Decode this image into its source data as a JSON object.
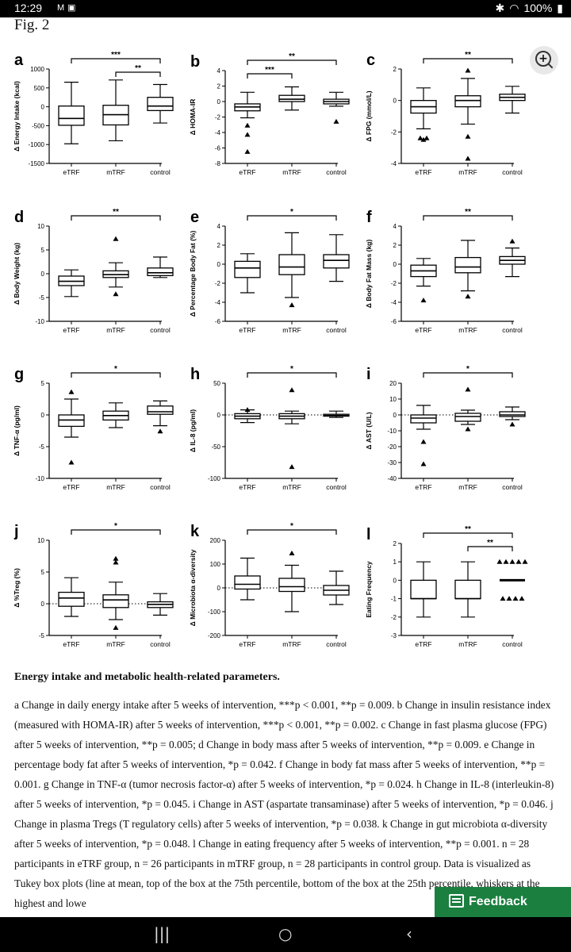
{
  "status_bar": {
    "time": "12:29",
    "notif_icons": [
      "gmail-icon",
      "news-icon"
    ],
    "sys_icons": [
      "bluetooth-icon",
      "wifi-icon"
    ],
    "battery": "100%"
  },
  "figure": {
    "title": "Fig. 2",
    "caption_title": "Energy intake and metabolic health-related parameters.",
    "caption_text": "a Change in daily energy intake after 5 weeks of intervention, ***p < 0.001, **p = 0.009. b Change in insulin resistance index (measured with HOMA-IR) after 5 weeks of intervention, ***p < 0.001, **p = 0.002. c Change in fast plasma glucose (FPG) after 5 weeks of intervention, **p = 0.005; d Change in body mass after 5 weeks of intervention, **p = 0.009. e Change in percentage body fat after 5 weeks of intervention, *p = 0.042. f Change in body fat mass after 5 weeks of intervention, **p = 0.001. g Change in TNF-α (tumor necrosis factor-α) after 5 weeks of intervention, *p = 0.024. h Change in IL-8 (interleukin-8) after 5 weeks of intervention, *p = 0.045. i Change in AST (aspartate transaminase) after 5 weeks of intervention, *p = 0.046. j Change in plasma Tregs (T regulatory cells) after 5 weeks of intervention, *p = 0.038. k Change in gut microbiota α-diversity after 5 weeks of intervention, *p = 0.048. l Change in eating frequency after 5 weeks of intervention, **p = 0.001. n = 28 participants in eTRF group, n = 26 participants in mTRF group, n = 28 participants in control group. Data is visualized as Tukey box plots (line at mean, top of the box at the 75th percentile, bottom of the box at the 25th percentile, whiskers at the highest and lowe"
  },
  "zoom_icon": "zoom-in-icon",
  "feedback": {
    "label": "Feedback",
    "icon": "feedback-icon"
  },
  "nav": {
    "recent": "|||",
    "home": "○",
    "back": "‹"
  },
  "chart_data": [
    {
      "panel": "a",
      "type": "box",
      "ylabel": "Δ Energy Intake (kcal)",
      "ylim": [
        -1500,
        1000
      ],
      "ticks": [
        1000,
        500,
        0,
        -500,
        -1000,
        -1500
      ],
      "zero_dotted": false,
      "categories": [
        "eTRF",
        "mTRF",
        "control"
      ],
      "boxes": [
        {
          "low": -980,
          "q1": -490,
          "median": -310,
          "q3": 20,
          "high": 650
        },
        {
          "low": -900,
          "q1": -480,
          "median": -210,
          "q3": 40,
          "high": 710
        },
        {
          "low": -430,
          "q1": -100,
          "median": 20,
          "q3": 250,
          "high": 590
        }
      ],
      "outliers": [
        [],
        [],
        []
      ],
      "sig": [
        {
          "from": 0,
          "to": 2,
          "label": "***"
        },
        {
          "from": 1,
          "to": 2,
          "label": "**"
        }
      ]
    },
    {
      "panel": "b",
      "type": "box",
      "ylabel": "Δ HOMA-IR",
      "ylim": [
        -8,
        4
      ],
      "ticks": [
        4,
        2,
        0,
        -2,
        -4,
        -6,
        -8
      ],
      "zero_dotted": false,
      "categories": [
        "eTRF",
        "mTRF",
        "control"
      ],
      "boxes": [
        {
          "low": -2.1,
          "q1": -1.2,
          "median": -0.7,
          "q3": -0.3,
          "high": 1.2
        },
        {
          "low": -1.1,
          "q1": 0.0,
          "median": 0.3,
          "q3": 0.8,
          "high": 1.9
        },
        {
          "low": -0.6,
          "q1": -0.3,
          "median": 0.0,
          "q3": 0.3,
          "high": 1.2
        }
      ],
      "outliers": [
        [
          -3.1,
          -4.3,
          -6.5
        ],
        [],
        [
          -2.6
        ]
      ],
      "sig": [
        {
          "from": 0,
          "to": 2,
          "label": "**"
        },
        {
          "from": 0,
          "to": 1,
          "label": "***"
        }
      ]
    },
    {
      "panel": "c",
      "type": "box",
      "ylabel": "Δ FPG (mmol/L)",
      "ylim": [
        -4,
        2
      ],
      "ticks": [
        2,
        0,
        -2,
        -4
      ],
      "zero_dotted": false,
      "categories": [
        "eTRF",
        "mTRF",
        "control"
      ],
      "boxes": [
        {
          "low": -1.8,
          "q1": -0.8,
          "median": -0.4,
          "q3": 0.0,
          "high": 0.8
        },
        {
          "low": -1.5,
          "q1": -0.4,
          "median": 0.0,
          "q3": 0.3,
          "high": 1.4
        },
        {
          "low": -0.8,
          "q1": 0.0,
          "median": 0.2,
          "q3": 0.4,
          "high": 0.9
        }
      ],
      "outliers": [
        [
          -2.5,
          -2.4,
          -2.4
        ],
        [
          1.9,
          -2.3,
          -3.7
        ],
        []
      ],
      "sig": [
        {
          "from": 0,
          "to": 2,
          "label": "**"
        }
      ]
    },
    {
      "panel": "d",
      "type": "box",
      "ylabel": "Δ Body Weight (kg)",
      "ylim": [
        -10,
        10
      ],
      "ticks": [
        10,
        5,
        0,
        -5,
        -10
      ],
      "zero_dotted": false,
      "categories": [
        "eTRF",
        "mTRF",
        "control"
      ],
      "boxes": [
        {
          "low": -4.8,
          "q1": -2.5,
          "median": -1.6,
          "q3": -0.5,
          "high": 0.8
        },
        {
          "low": -2.8,
          "q1": -0.8,
          "median": -0.2,
          "q3": 0.6,
          "high": 2.3
        },
        {
          "low": -0.8,
          "q1": -0.4,
          "median": 0.2,
          "q3": 1.2,
          "high": 3.5
        }
      ],
      "outliers": [
        [],
        [
          7.3,
          -4.3
        ],
        []
      ],
      "sig": [
        {
          "from": 0,
          "to": 2,
          "label": "**"
        }
      ]
    },
    {
      "panel": "e",
      "type": "box",
      "ylabel": "Δ Percentage Body Fat (%)",
      "ylim": [
        -6,
        4
      ],
      "ticks": [
        4,
        2,
        0,
        -2,
        -4,
        -6
      ],
      "zero_dotted": false,
      "categories": [
        "eTRF",
        "mTRF",
        "control"
      ],
      "boxes": [
        {
          "low": -3.0,
          "q1": -1.4,
          "median": -0.4,
          "q3": 0.3,
          "high": 1.1
        },
        {
          "low": -3.5,
          "q1": -1.1,
          "median": -0.3,
          "q3": 1.0,
          "high": 3.3
        },
        {
          "low": -1.8,
          "q1": -0.4,
          "median": 0.4,
          "q3": 1.0,
          "high": 3.1
        }
      ],
      "outliers": [
        [],
        [
          -4.3
        ],
        []
      ],
      "sig": [
        {
          "from": 0,
          "to": 2,
          "label": "*"
        }
      ]
    },
    {
      "panel": "f",
      "type": "box",
      "ylabel": "Δ Body Fat Mass (kg)",
      "ylim": [
        -6,
        4
      ],
      "ticks": [
        4,
        2,
        0,
        -2,
        -4,
        -6
      ],
      "zero_dotted": false,
      "categories": [
        "eTRF",
        "mTRF",
        "control"
      ],
      "boxes": [
        {
          "low": -2.3,
          "q1": -1.3,
          "median": -0.7,
          "q3": -0.1,
          "high": 0.6
        },
        {
          "low": -2.8,
          "q1": -0.9,
          "median": -0.3,
          "q3": 0.7,
          "high": 2.5
        },
        {
          "low": -1.3,
          "q1": 0.0,
          "median": 0.4,
          "q3": 0.8,
          "high": 1.7
        }
      ],
      "outliers": [
        [
          -3.8
        ],
        [
          -3.4
        ],
        [
          2.4
        ]
      ],
      "sig": [
        {
          "from": 0,
          "to": 2,
          "label": "**"
        }
      ]
    },
    {
      "panel": "g",
      "type": "box",
      "ylabel": "Δ TNF-α (pg/ml)",
      "ylim": [
        -10,
        5
      ],
      "ticks": [
        5,
        0,
        -5,
        -10
      ],
      "zero_dotted": false,
      "categories": [
        "eTRF",
        "mTRF",
        "control"
      ],
      "boxes": [
        {
          "low": -3.5,
          "q1": -1.8,
          "median": -0.8,
          "q3": 0.0,
          "high": 2.5
        },
        {
          "low": -2.0,
          "q1": -0.8,
          "median": -0.1,
          "q3": 0.6,
          "high": 1.9
        },
        {
          "low": -1.7,
          "q1": 0.1,
          "median": 0.5,
          "q3": 1.4,
          "high": 2.2
        }
      ],
      "outliers": [
        [
          3.6,
          -7.5
        ],
        [],
        [
          -2.6
        ]
      ],
      "sig": [
        {
          "from": 0,
          "to": 2,
          "label": "*"
        }
      ]
    },
    {
      "panel": "h",
      "type": "box",
      "ylabel": "Δ IL-8 (pg/ml)",
      "ylim": [
        -100,
        50
      ],
      "ticks": [
        50,
        0,
        -50,
        -100
      ],
      "zero_dotted": true,
      "categories": [
        "eTRF",
        "mTRF",
        "control"
      ],
      "boxes": [
        {
          "low": -12,
          "q1": -6,
          "median": -2,
          "q3": 2,
          "high": 8
        },
        {
          "low": -14,
          "q1": -6,
          "median": -2,
          "q3": 2,
          "high": 6
        },
        {
          "low": -4,
          "q1": -2,
          "median": -1,
          "q3": 1,
          "high": 6
        }
      ],
      "outliers": [
        [
          8
        ],
        [
          39,
          -82
        ],
        []
      ],
      "sig": [
        {
          "from": 0,
          "to": 2,
          "label": "*"
        }
      ]
    },
    {
      "panel": "i",
      "type": "box",
      "ylabel": "Δ AST (U/L)",
      "ylim": [
        -40,
        20
      ],
      "ticks": [
        20,
        10,
        0,
        -10,
        -20,
        -30,
        -40
      ],
      "zero_dotted": true,
      "categories": [
        "eTRF",
        "mTRF",
        "control"
      ],
      "boxes": [
        {
          "low": -9,
          "q1": -5,
          "median": -2,
          "q3": 0,
          "high": 6
        },
        {
          "low": -6,
          "q1": -4,
          "median": -1,
          "q3": 1,
          "high": 3
        },
        {
          "low": -3,
          "q1": -1,
          "median": 0,
          "q3": 2,
          "high": 5
        }
      ],
      "outliers": [
        [
          -17,
          -31
        ],
        [
          16,
          -9
        ],
        [
          -6
        ]
      ],
      "sig": [
        {
          "from": 0,
          "to": 2,
          "label": "*"
        }
      ]
    },
    {
      "panel": "j",
      "type": "box",
      "ylabel": "Δ %Treg (%)",
      "ylim": [
        -5,
        10
      ],
      "ticks": [
        10,
        5,
        0,
        -5
      ],
      "zero_dotted": true,
      "categories": [
        "eTRF",
        "mTRF",
        "control"
      ],
      "boxes": [
        {
          "low": -2.0,
          "q1": -0.4,
          "median": 0.9,
          "q3": 1.8,
          "high": 4.1
        },
        {
          "low": -2.5,
          "q1": -0.6,
          "median": 0.6,
          "q3": 1.4,
          "high": 3.4
        },
        {
          "low": -1.8,
          "q1": -0.6,
          "median": -0.1,
          "q3": 0.3,
          "high": 1.6
        }
      ],
      "outliers": [
        [],
        [
          7.1,
          6.5,
          -3.8
        ],
        []
      ],
      "sig": [
        {
          "from": 0,
          "to": 2,
          "label": "*"
        }
      ]
    },
    {
      "panel": "k",
      "type": "box",
      "ylabel": "Δ Microbiota α-diversity",
      "ylim": [
        -200,
        200
      ],
      "ticks": [
        200,
        100,
        0,
        -100,
        -200
      ],
      "zero_dotted": true,
      "categories": [
        "eTRF",
        "mTRF",
        "control"
      ],
      "boxes": [
        {
          "low": -50,
          "q1": -5,
          "median": 15,
          "q3": 50,
          "high": 125
        },
        {
          "low": -100,
          "q1": -15,
          "median": 5,
          "q3": 40,
          "high": 95
        },
        {
          "low": -70,
          "q1": -30,
          "median": -10,
          "q3": 10,
          "high": 70
        }
      ],
      "outliers": [
        [],
        [
          145
        ],
        []
      ],
      "sig": [
        {
          "from": 0,
          "to": 2,
          "label": "*"
        }
      ]
    },
    {
      "panel": "l",
      "type": "box",
      "ylabel": "Eating Frequency",
      "ylim": [
        -3,
        2
      ],
      "ticks": [
        2,
        1,
        0,
        -1,
        -2,
        -3
      ],
      "zero_dotted": false,
      "categories": [
        "eTRF",
        "mTRF",
        "control"
      ],
      "boxes": [
        {
          "low": -2,
          "q1": -1,
          "median": -1,
          "q3": 0,
          "high": 1
        },
        {
          "low": -2,
          "q1": -1,
          "median": -1,
          "q3": 0,
          "high": 1
        },
        {
          "low": 0,
          "q1": 0,
          "median": 0,
          "q3": 0,
          "high": 0
        }
      ],
      "outliers": [
        [],
        [],
        [
          1,
          1,
          1,
          1,
          1,
          -1,
          -1,
          -1,
          -1
        ]
      ],
      "sig": [
        {
          "from": 0,
          "to": 2,
          "label": "**"
        },
        {
          "from": 1,
          "to": 2,
          "label": "**"
        }
      ]
    }
  ]
}
